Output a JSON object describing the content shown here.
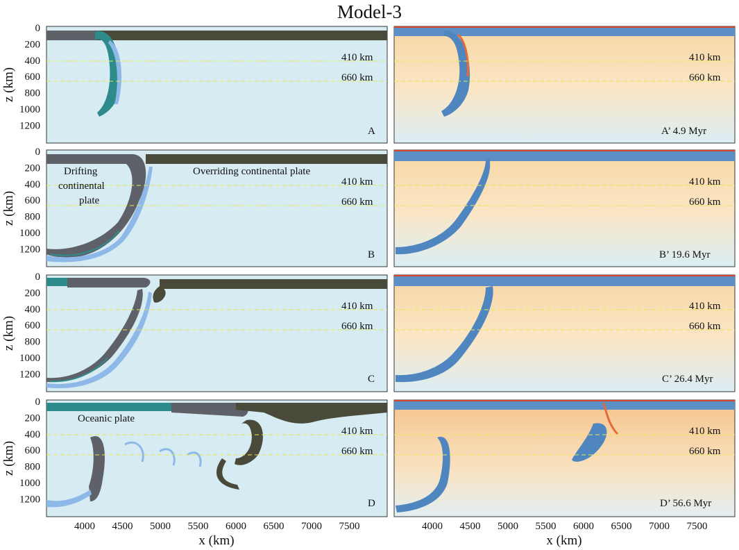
{
  "title": "Model-3",
  "axes": {
    "xlabel": "x (km)",
    "ylabel": "z (km)",
    "x_ticks": [
      "4000",
      "4500",
      "5000",
      "5500",
      "6000",
      "6500",
      "7000",
      "7500"
    ],
    "z_ticks": [
      "0",
      "200",
      "400",
      "600",
      "800",
      "1000",
      "1200"
    ]
  },
  "reference_lines": [
    "410 km",
    "660 km"
  ],
  "colors": {
    "mantle_left": "#d6ebf2",
    "plate_dark": "#4a4a3a",
    "continent_gray": "#5e6168",
    "slab_teal": "#2e8b8b",
    "weak_blue": "#8db8e8",
    "ref_line": "#e8e84a",
    "temp_warm": "#f7d9a8",
    "temp_cold": "#4f86bf"
  },
  "panels": [
    {
      "label": "A",
      "time_label": "A’ 4.9 Myr",
      "annotations": []
    },
    {
      "label": "B",
      "time_label": "B’ 19.6 Myr",
      "annotations": [
        "Drifting",
        "continental",
        "plate",
        "Overriding continental plate"
      ]
    },
    {
      "label": "C",
      "time_label": "C’ 26.4 Myr",
      "annotations": []
    },
    {
      "label": "D",
      "time_label": "D’ 56.6 Myr",
      "annotations": [
        "Oceanic plate"
      ]
    }
  ]
}
